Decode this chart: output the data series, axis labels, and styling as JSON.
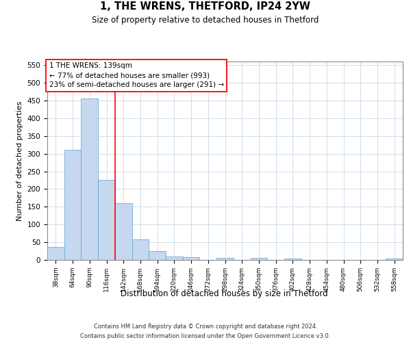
{
  "title1": "1, THE WRENS, THETFORD, IP24 2YW",
  "title2": "Size of property relative to detached houses in Thetford",
  "xlabel": "Distribution of detached houses by size in Thetford",
  "ylabel": "Number of detached properties",
  "categories": [
    "38sqm",
    "64sqm",
    "90sqm",
    "116sqm",
    "142sqm",
    "168sqm",
    "194sqm",
    "220sqm",
    "246sqm",
    "272sqm",
    "298sqm",
    "324sqm",
    "350sqm",
    "376sqm",
    "402sqm",
    "428sqm",
    "454sqm",
    "480sqm",
    "506sqm",
    "532sqm",
    "558sqm"
  ],
  "values": [
    37,
    310,
    455,
    225,
    160,
    57,
    25,
    10,
    8,
    0,
    5,
    0,
    5,
    0,
    3,
    0,
    0,
    0,
    0,
    0,
    4
  ],
  "bar_color": "#c5d8f0",
  "bar_edge_color": "#5a9fd4",
  "red_line_x": 3.5,
  "annotation_line1": "1 THE WRENS: 139sqm",
  "annotation_line2": "← 77% of detached houses are smaller (993)",
  "annotation_line3": "23% of semi-detached houses are larger (291) →",
  "footer1": "Contains HM Land Registry data © Crown copyright and database right 2024.",
  "footer2": "Contains public sector information licensed under the Open Government Licence v3.0.",
  "ylim_max": 560,
  "yticks": [
    0,
    50,
    100,
    150,
    200,
    250,
    300,
    350,
    400,
    450,
    500,
    550
  ],
  "background_color": "#ffffff",
  "grid_color": "#c8d8e8",
  "title1_fontsize": 10.5,
  "title2_fontsize": 8.5,
  "ylabel_fontsize": 8,
  "xlabel_fontsize": 8.5,
  "ytick_fontsize": 7.5,
  "xtick_fontsize": 6.5,
  "ann_fontsize": 7.5,
  "footer_fontsize": 6.0
}
